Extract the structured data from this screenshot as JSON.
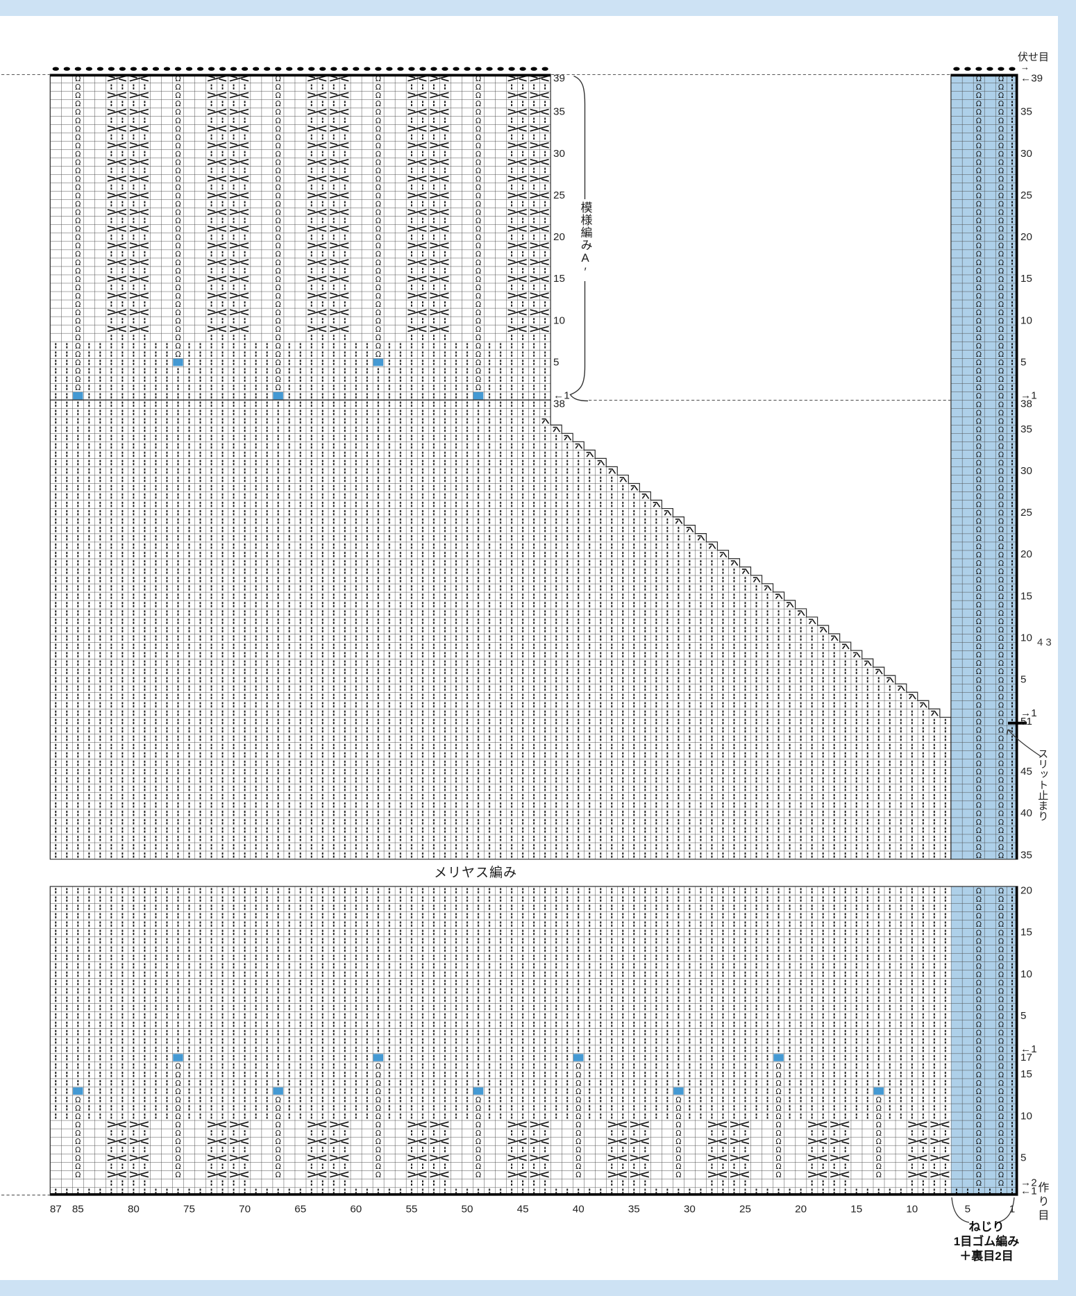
{
  "page": {
    "page_number": "43",
    "background": "#ffffff",
    "frame_color": "#cde2f4"
  },
  "labels": {
    "bind_off": "伏せ目",
    "bind_off_arrow": "→",
    "pattern_a": "模様編みA′",
    "stockinette": "メリヤス編み",
    "slit_end": "スリット止まり",
    "cast_on": "作り目",
    "rib_line1": "ねじり",
    "rib_line2": "1目ゴム編み",
    "rib_line3": "＋裏目2目"
  },
  "colors": {
    "band": "#aed0e9",
    "square": "#4499d3",
    "grid": "#4a4a4a",
    "symbol": "#141414",
    "outline": "#2b2b2b",
    "text": "#222222",
    "dot": "#000000"
  },
  "axis": {
    "bottom_cols": [
      87,
      85,
      80,
      75,
      70,
      65,
      60,
      55,
      50,
      45,
      40,
      35,
      30,
      25,
      20,
      15,
      10,
      5,
      1
    ]
  },
  "row_labels": {
    "chart_side": [
      {
        "chart": "top",
        "entries": [
          {
            "r": 39,
            "t": "39"
          },
          {
            "r": 35,
            "t": "35"
          },
          {
            "r": 30,
            "t": "30"
          },
          {
            "r": 25,
            "t": "25"
          },
          {
            "r": 20,
            "t": "20"
          },
          {
            "r": 15,
            "t": "15"
          },
          {
            "r": 10,
            "t": "10"
          },
          {
            "r": 5,
            "t": "5"
          },
          {
            "r": 1,
            "t": "←1"
          }
        ]
      },
      {
        "chart": "mid_u",
        "entries": [
          {
            "r": 38,
            "t": "38"
          }
        ]
      }
    ],
    "band_side": [
      {
        "chart": "top",
        "entries": [
          {
            "r": 39,
            "t": "←39"
          },
          {
            "r": 35,
            "t": "35"
          },
          {
            "r": 30,
            "t": "30"
          },
          {
            "r": 25,
            "t": "25"
          },
          {
            "r": 20,
            "t": "20"
          },
          {
            "r": 15,
            "t": "15"
          },
          {
            "r": 10,
            "t": "10"
          },
          {
            "r": 5,
            "t": "5"
          },
          {
            "r": 1,
            "t": "→1"
          }
        ]
      },
      {
        "chart": "mid_u",
        "entries": [
          {
            "r": 38,
            "t": "38"
          },
          {
            "r": 35,
            "t": "35"
          },
          {
            "r": 30,
            "t": "30"
          },
          {
            "r": 25,
            "t": "25"
          },
          {
            "r": 20,
            "t": "20"
          },
          {
            "r": 15,
            "t": "15"
          },
          {
            "r": 10,
            "t": "10"
          },
          {
            "r": 5,
            "t": "5"
          },
          {
            "r": 1,
            "t": "→1"
          }
        ]
      },
      {
        "chart": "mid_l",
        "entries": [
          {
            "r": 51,
            "t": "51"
          },
          {
            "r": 45,
            "t": "45"
          },
          {
            "r": 40,
            "t": "40"
          },
          {
            "r": 35,
            "t": "35"
          }
        ]
      },
      {
        "chart": "bot_u",
        "entries": [
          {
            "r": 20,
            "t": "20"
          },
          {
            "r": 15,
            "t": "15"
          },
          {
            "r": 10,
            "t": "10"
          },
          {
            "r": 5,
            "t": "5"
          },
          {
            "r": 1,
            "t": "←1"
          }
        ]
      },
      {
        "chart": "bot_l",
        "entries": [
          {
            "r": 17,
            "t": "17"
          },
          {
            "r": 15,
            "t": "15"
          },
          {
            "r": 10,
            "t": "10"
          },
          {
            "r": 5,
            "t": "5"
          },
          {
            "r": 2,
            "t": "→2"
          },
          {
            "r": 1,
            "t": "←1"
          }
        ]
      }
    ]
  },
  "knit": {
    "total_cols": 87,
    "top_chart": {
      "cols": 45,
      "rows": 39,
      "right_col": 43,
      "omega_cols": [
        85,
        76,
        67,
        58,
        49
      ],
      "panel_cols": [
        82,
        73,
        64,
        55,
        46
      ],
      "cross_row_min": 9,
      "knit_all_rows_max": 7,
      "panel_knit_row": 8,
      "squares": [
        [
          85,
          1
        ],
        [
          76,
          5
        ],
        [
          67,
          1
        ],
        [
          58,
          5
        ],
        [
          49,
          1
        ]
      ]
    },
    "middle_chart": {
      "upper_rows": 38,
      "lower_rows": 17,
      "stair_first_vrow": 3,
      "stair_first_col": 43,
      "lower_right_col": 7
    },
    "bottom_chart": {
      "upper_rows": 20,
      "lower_rows": 17,
      "panel_cols": [
        82,
        73,
        64,
        55,
        46,
        37,
        28,
        19,
        10
      ],
      "cross_rows": [
        9,
        7,
        5,
        3
      ],
      "panel_knit_rows": [
        8,
        6,
        4,
        2
      ],
      "squares": [
        [
          85,
          13
        ],
        [
          76,
          17
        ],
        [
          67,
          13
        ],
        [
          58,
          17
        ],
        [
          49,
          13
        ],
        [
          40,
          17
        ],
        [
          31,
          13
        ],
        [
          22,
          17
        ],
        [
          13,
          13
        ]
      ],
      "omega_bottom_row": 3
    },
    "band": {
      "cols": 6,
      "omega_cols": [
        4,
        2
      ],
      "knit_cols": [
        1
      ]
    }
  }
}
